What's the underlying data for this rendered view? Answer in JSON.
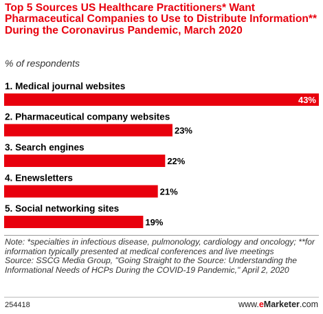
{
  "header": {
    "title": "Top 5 Sources US Healthcare Practitioners* Want Pharmaceutical Companies to Use to Distribute Information** During the Coronavirus Pandemic, March 2020",
    "subtitle": "% of respondents"
  },
  "chart_data": {
    "type": "bar",
    "orientation": "horizontal",
    "title": "Top 5 Sources US Healthcare Practitioners* Want Pharmaceutical Companies to Use to Distribute Information** During the Coronavirus Pandemic, March 2020",
    "subtitle": "% of respondents",
    "categories": [
      "1. Medical journal websites",
      "2. Pharmaceutical company websites",
      "3. Search engines",
      "4. Enewsletters",
      "5. Social networking sites"
    ],
    "values": [
      43,
      23,
      22,
      21,
      19
    ],
    "value_labels": [
      "43%",
      "23%",
      "22%",
      "21%",
      "19%"
    ],
    "unit": "%",
    "xlim": [
      0,
      43
    ],
    "grid": false,
    "legend": "none",
    "bar_color": "#e8000d"
  },
  "footer": {
    "note": "Note: *specialties in infectious disease, pulmonology, cardiology and oncology; **for information typically presented at medical conferences and live meetings",
    "source": "Source: SSCG Media Group, \"Going Straight to the Source: Understanding the Informational Needs of HCPs During the COVID-19 Pandemic,\" April 2, 2020",
    "chart_id": "254418",
    "brand_prefix": "www.",
    "brand_accent": "e",
    "brand_name": "Marketer",
    "brand_suffix": ".com"
  }
}
